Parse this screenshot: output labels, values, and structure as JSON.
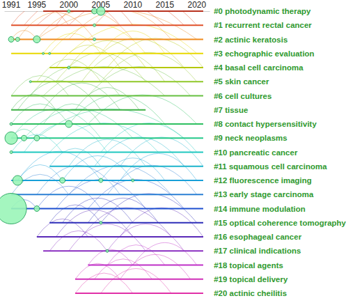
{
  "chart_data": {
    "type": "timeline",
    "xlim": [
      1990,
      2022
    ],
    "xticks": [
      1991,
      1995,
      2000,
      2005,
      2010,
      2015,
      2020
    ],
    "grid": false,
    "series": [
      {
        "name": "#0 photodynamic therapy",
        "color": "#b8321f",
        "start": 1996,
        "end": 2021,
        "nodes": [
          {
            "x": 2000,
            "size": 2
          },
          {
            "x": 2004,
            "size": 4
          },
          {
            "x": 2005,
            "size": 6
          }
        ],
        "links": [
          [
            1996,
            2005
          ],
          [
            1997,
            2010
          ],
          [
            2000,
            2015
          ],
          [
            2002,
            2020
          ],
          [
            2005,
            2018
          ],
          [
            1999,
            2008
          ],
          [
            2004,
            2012
          ],
          [
            2008,
            2021
          ]
        ]
      },
      {
        "name": "#1 recurrent rectal cancer",
        "color": "#e0502a",
        "start": 1991,
        "end": 2021,
        "nodes": [
          {
            "x": 2004,
            "size": 2
          }
        ],
        "links": [
          [
            1991,
            2000
          ],
          [
            1993,
            2008
          ],
          [
            1995,
            2015
          ],
          [
            2000,
            2018
          ],
          [
            2004,
            2020
          ],
          [
            1998,
            2010
          ]
        ]
      },
      {
        "name": "#2 actinic keratosis",
        "color": "#f08a1c",
        "start": 1991,
        "end": 2021,
        "nodes": [
          {
            "x": 1991,
            "size": 4
          },
          {
            "x": 1992,
            "size": 3
          },
          {
            "x": 1995,
            "size": 5
          },
          {
            "x": 2004,
            "size": 2
          }
        ],
        "links": [
          [
            1991,
            1995
          ],
          [
            1992,
            2004
          ],
          [
            1995,
            2010
          ],
          [
            1995,
            2020
          ],
          [
            2000,
            2016
          ]
        ]
      },
      {
        "name": "#3 echographic evaluation",
        "color": "#e8d800",
        "start": 1991,
        "end": 2021,
        "nodes": [
          {
            "x": 1996,
            "size": 1.5
          },
          {
            "x": 1997,
            "size": 1.5
          }
        ],
        "links": [
          [
            1996,
            2005
          ],
          [
            1997,
            2012
          ],
          [
            2000,
            2020
          ],
          [
            2005,
            2015
          ]
        ]
      },
      {
        "name": "#4 basal cell carcinoma",
        "color": "#b4c800",
        "start": 1997,
        "end": 2021,
        "nodes": [
          {
            "x": 2000,
            "size": 2
          }
        ],
        "links": [
          [
            1998,
            2008
          ],
          [
            2000,
            2012
          ],
          [
            2003,
            2018
          ],
          [
            2006,
            2021
          ]
        ]
      },
      {
        "name": "#5 skin cancer",
        "color": "#90c828",
        "start": 1994,
        "end": 2021,
        "nodes": [
          {
            "x": 1994,
            "size": 1.5
          }
        ],
        "links": [
          [
            1995,
            2005
          ],
          [
            1998,
            2012
          ],
          [
            2002,
            2015
          ],
          [
            2005,
            2020
          ]
        ]
      },
      {
        "name": "#6 cell cultures",
        "color": "#66c040",
        "start": 1991,
        "end": 2021,
        "nodes": [],
        "links": [
          [
            1991,
            2000
          ],
          [
            1994,
            2008
          ],
          [
            1996,
            2015
          ],
          [
            2003,
            2019
          ]
        ]
      },
      {
        "name": "#7 tissue",
        "color": "#3cb043",
        "start": 1991,
        "end": 2012,
        "nodes": [],
        "links": [
          [
            1991,
            1998
          ],
          [
            1992,
            2005
          ],
          [
            1996,
            2008
          ],
          [
            2001,
            2011
          ]
        ]
      },
      {
        "name": "#8 contact hypersensitivity",
        "color": "#2ec060",
        "start": 1991,
        "end": 2021,
        "nodes": [
          {
            "x": 1991,
            "size": 2
          },
          {
            "x": 2000,
            "size": 5
          }
        ],
        "links": [
          [
            1991,
            2000
          ],
          [
            1996,
            2005
          ],
          [
            2000,
            2015
          ],
          [
            2003,
            2020
          ]
        ]
      },
      {
        "name": "#9 neck neoplasms",
        "color": "#24c88a",
        "start": 1991,
        "end": 2021,
        "nodes": [
          {
            "x": 1991,
            "size": 9
          },
          {
            "x": 1993,
            "size": 4
          },
          {
            "x": 1995,
            "size": 4
          }
        ],
        "links": [
          [
            1991,
            1995
          ],
          [
            1991,
            2005
          ],
          [
            1993,
            2010
          ],
          [
            1995,
            2018
          ]
        ]
      },
      {
        "name": "#10 pancreatic cancer",
        "color": "#1ec8c0",
        "start": 1991,
        "end": 2021,
        "nodes": [
          {
            "x": 1991,
            "size": 2
          }
        ],
        "links": [
          [
            1991,
            1999
          ],
          [
            1993,
            2006
          ],
          [
            1997,
            2014
          ],
          [
            2005,
            2020
          ]
        ]
      },
      {
        "name": "#11 squamous cell carcinoma",
        "color": "#1cb4cc",
        "start": 1997,
        "end": 2021,
        "nodes": [],
        "links": [
          [
            1997,
            2005
          ],
          [
            2000,
            2012
          ],
          [
            2004,
            2018
          ],
          [
            2008,
            2021
          ]
        ]
      },
      {
        "name": "#12 fluorescence imaging",
        "color": "#18a0d8",
        "start": 1991,
        "end": 2021,
        "nodes": [
          {
            "x": 1992,
            "size": 7
          },
          {
            "x": 1999,
            "size": 4
          },
          {
            "x": 2005,
            "size": 3
          },
          {
            "x": 2010,
            "size": 2
          }
        ],
        "links": [
          [
            1992,
            1999
          ],
          [
            1992,
            2005
          ],
          [
            1999,
            2010
          ],
          [
            2005,
            2015
          ],
          [
            2008,
            2020
          ]
        ]
      },
      {
        "name": "#13 early stage carcinoma",
        "color": "#2a7fd4",
        "start": 1991,
        "end": 2021,
        "nodes": [],
        "links": [
          [
            1991,
            2000
          ],
          [
            1995,
            2008
          ],
          [
            2000,
            2016
          ],
          [
            2006,
            2020
          ]
        ]
      },
      {
        "name": "#14 immune modulation",
        "color": "#1e50d0",
        "start": 1991,
        "end": 2021,
        "nodes": [
          {
            "x": 1991,
            "size": 22
          },
          {
            "x": 1995,
            "size": 4
          }
        ],
        "links": [
          [
            1991,
            1995
          ],
          [
            1995,
            2005
          ],
          [
            1998,
            2012
          ],
          [
            2003,
            2018
          ]
        ]
      },
      {
        "name": "#15 optical coherence tomography",
        "color": "#2c2cb8",
        "start": 1997,
        "end": 2021,
        "nodes": [
          {
            "x": 2005,
            "size": 2
          }
        ],
        "links": [
          [
            1997,
            2005
          ],
          [
            1999,
            2010
          ],
          [
            2003,
            2014
          ],
          [
            2005,
            2020
          ]
        ]
      },
      {
        "name": "#16 esophageal cancer",
        "color": "#5a2ab8",
        "start": 1995,
        "end": 2021,
        "nodes": [],
        "links": [
          [
            1995,
            2003
          ],
          [
            1998,
            2010
          ],
          [
            2002,
            2016
          ],
          [
            2008,
            2021
          ]
        ]
      },
      {
        "name": "#17 clinical indications",
        "color": "#8a2ec0",
        "start": 1996,
        "end": 2021,
        "nodes": [
          {
            "x": 2006,
            "size": 2
          }
        ],
        "links": [
          [
            1997,
            2006
          ],
          [
            2000,
            2012
          ],
          [
            2006,
            2018
          ]
        ]
      },
      {
        "name": "#18 topical agents",
        "color": "#c030c8",
        "start": 2003,
        "end": 2021,
        "nodes": [],
        "links": [
          [
            2003,
            2010
          ],
          [
            2006,
            2015
          ],
          [
            2010,
            2020
          ]
        ]
      },
      {
        "name": "#19 topical delivery",
        "color": "#d030b8",
        "start": 2001,
        "end": 2021,
        "nodes": [],
        "links": [
          [
            2001,
            2008
          ],
          [
            2004,
            2013
          ],
          [
            2008,
            2019
          ]
        ]
      },
      {
        "name": "#20 actinic cheilitis",
        "color": "#e030a8",
        "start": 2001,
        "end": 2021,
        "nodes": [],
        "links": [
          [
            2001,
            2010
          ],
          [
            2005,
            2016
          ]
        ]
      }
    ]
  }
}
